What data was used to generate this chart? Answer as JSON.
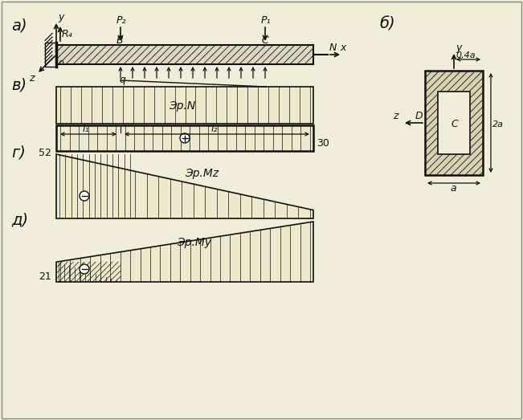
{
  "bg_color": "#f2edd8",
  "lc": "#111111",
  "label_a": "а)",
  "label_b": "б)",
  "label_v": "в)",
  "label_g": "г)",
  "label_d": "д)",
  "text_RA": "R₄",
  "text_P2": "P₂",
  "text_P1": "P₁",
  "text_N": "N",
  "text_B": "B",
  "text_C": "C",
  "text_o": "o",
  "text_q": "q",
  "text_y": "y",
  "text_x": "x",
  "text_z": "z",
  "text_l1": "l₁",
  "text_l2": "l₂",
  "text_epN": "Эp.N",
  "text_epMz": "Эp.Mz",
  "text_epMy": "Эp.My",
  "text_30": "30",
  "text_52": "52",
  "text_21": "21",
  "text_04a": "0,4a",
  "text_2a": "2a",
  "text_a_dim": "a",
  "text_D": "D",
  "text_CC": "C"
}
